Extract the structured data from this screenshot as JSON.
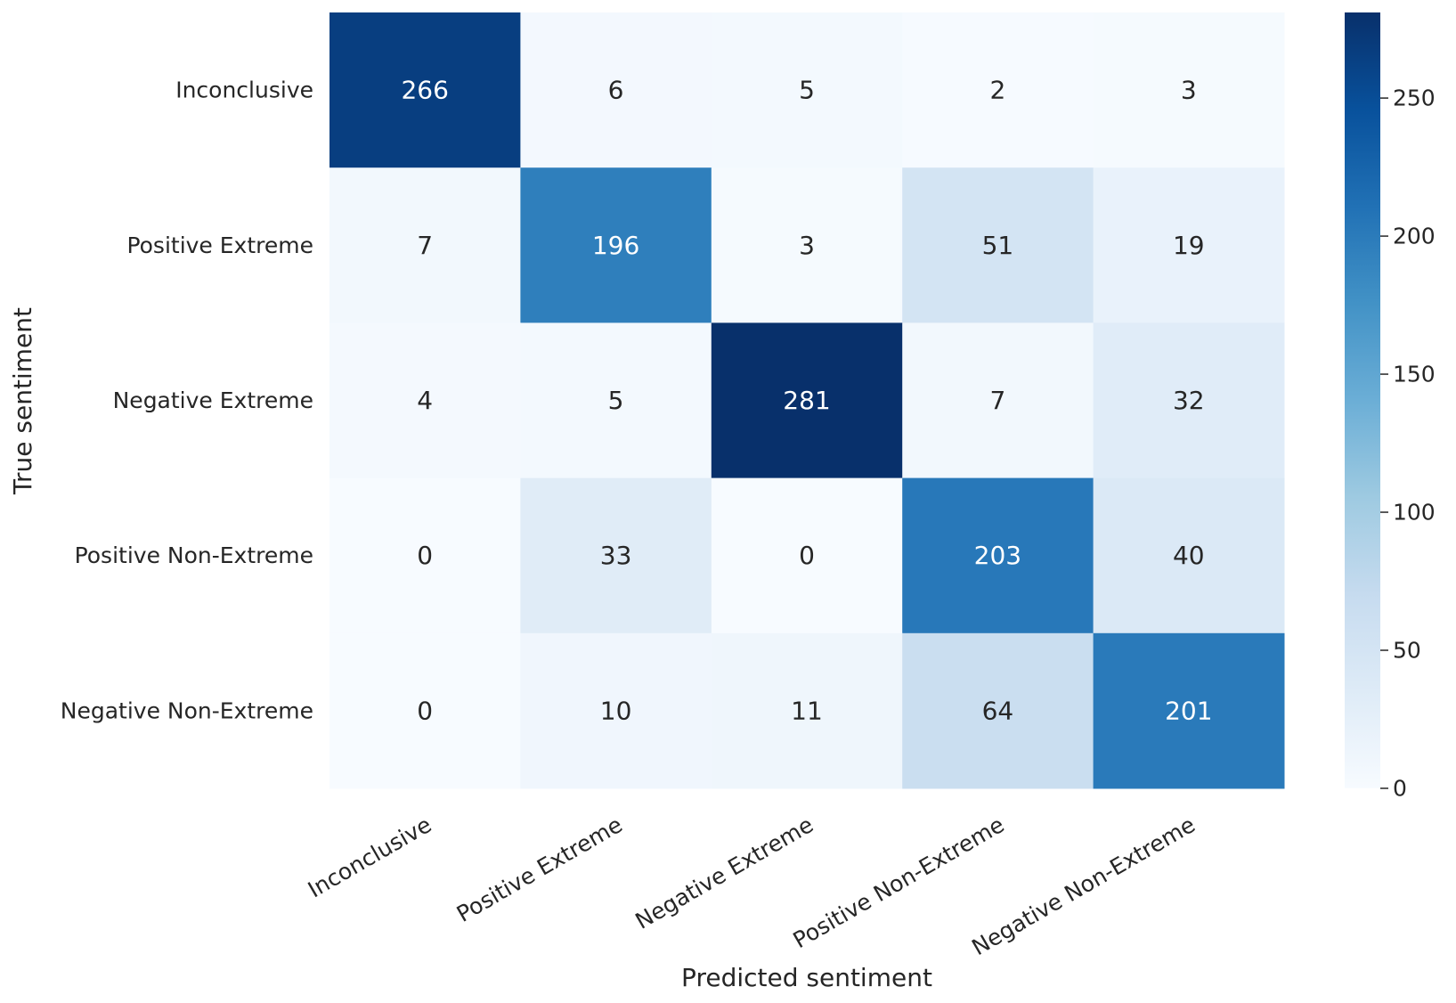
{
  "chart_data": {
    "type": "heatmap",
    "title": "",
    "xlabel": "Predicted sentiment",
    "ylabel": "True sentiment",
    "x_categories": [
      "Inconclusive",
      "Positive Extreme",
      "Negative Extreme",
      "Positive Non-Extreme",
      "Negative Non-Extreme"
    ],
    "y_categories": [
      "Inconclusive",
      "Positive Extreme",
      "Negative Extreme",
      "Positive Non-Extreme",
      "Negative Non-Extreme"
    ],
    "values": [
      [
        266,
        6,
        5,
        2,
        3
      ],
      [
        7,
        196,
        3,
        51,
        19
      ],
      [
        4,
        5,
        281,
        7,
        32
      ],
      [
        0,
        33,
        0,
        203,
        40
      ],
      [
        0,
        10,
        11,
        64,
        201
      ]
    ],
    "colormap": "Blues",
    "color_range": [
      0,
      281
    ],
    "colorbar_ticks": [
      0,
      50,
      100,
      150,
      200,
      250
    ],
    "grid": false
  }
}
